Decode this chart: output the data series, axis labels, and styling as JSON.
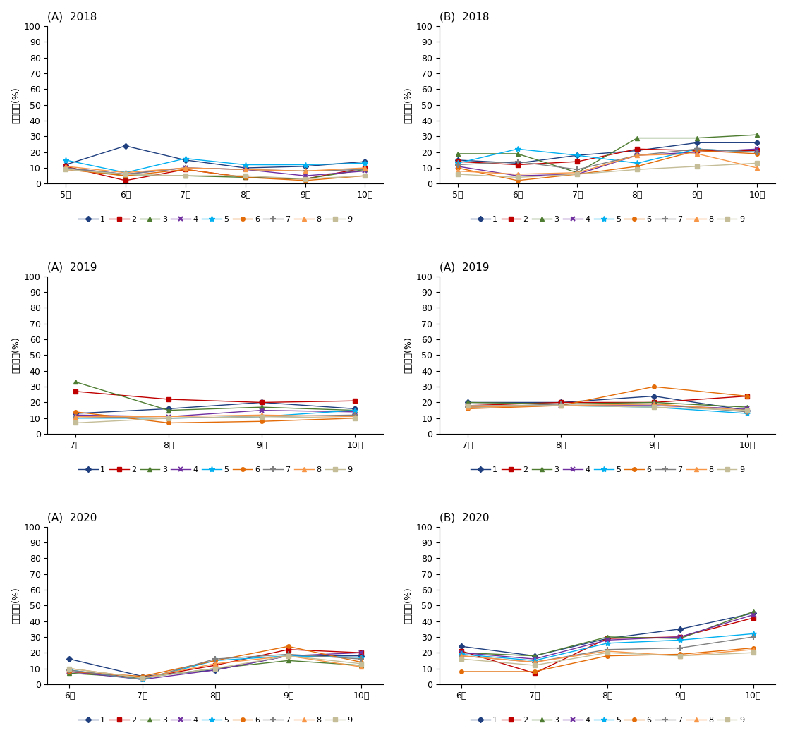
{
  "series_colors": [
    "#1f3f7f",
    "#c00000",
    "#4e7d31",
    "#7030a0",
    "#00b0f0",
    "#e36c09",
    "#808080",
    "#f79646",
    "#c4bd97"
  ],
  "series_markers": [
    "D",
    "s",
    "^",
    "x",
    "*",
    "o",
    "p",
    "p",
    "s"
  ],
  "series_linestyles": [
    "-",
    "-",
    "-",
    "-",
    "-",
    "-",
    "-",
    "-",
    "-"
  ],
  "series_labels": [
    "1",
    "2",
    "3",
    "4",
    "5",
    "6",
    "7",
    "8",
    "9"
  ],
  "ylabel": "광투과율(%)",
  "ylim": [
    0,
    100
  ],
  "yticks": [
    0,
    10,
    20,
    30,
    40,
    50,
    60,
    70,
    80,
    90,
    100
  ],
  "subplots": [
    {
      "title": "(A)  2018",
      "xtick_labels": [
        "5월",
        "6월",
        "7월",
        "8월",
        "9월",
        "10월"
      ],
      "x": [
        0,
        1,
        2,
        3,
        4,
        5
      ],
      "series": [
        [
          12,
          24,
          15,
          10,
          11,
          14
        ],
        [
          11,
          2,
          9,
          4,
          3,
          10
        ],
        [
          10,
          5,
          5,
          4,
          3,
          9
        ],
        [
          10,
          6,
          10,
          9,
          5,
          8
        ],
        [
          15,
          7,
          16,
          12,
          12,
          13
        ],
        [
          9,
          5,
          9,
          4,
          2,
          5
        ],
        [
          10,
          6,
          10,
          9,
          8,
          9
        ],
        [
          11,
          7,
          10,
          9,
          8,
          10
        ],
        [
          9,
          6,
          5,
          5,
          3,
          5
        ]
      ]
    },
    {
      "title": "(B)  2018",
      "xtick_labels": [
        "5월",
        "6월",
        "7월",
        "8월",
        "9월",
        "10월"
      ],
      "x": [
        0,
        1,
        2,
        3,
        4,
        5
      ],
      "series": [
        [
          15,
          13,
          18,
          21,
          26,
          26
        ],
        [
          14,
          12,
          14,
          22,
          21,
          21
        ],
        [
          19,
          19,
          7,
          29,
          29,
          31
        ],
        [
          11,
          5,
          6,
          18,
          20,
          22
        ],
        [
          13,
          22,
          18,
          13,
          22,
          20
        ],
        [
          10,
          2,
          6,
          11,
          21,
          19
        ],
        [
          12,
          14,
          9,
          18,
          22,
          20
        ],
        [
          8,
          6,
          7,
          18,
          19,
          10
        ],
        [
          6,
          4,
          6,
          9,
          11,
          13
        ]
      ]
    },
    {
      "title": "(A)  2019",
      "xtick_labels": [
        "7월",
        "8월",
        "9월",
        "10월"
      ],
      "x": [
        0,
        1,
        2,
        3
      ],
      "series": [
        [
          13,
          16,
          20,
          16
        ],
        [
          27,
          22,
          20,
          21
        ],
        [
          33,
          15,
          17,
          15
        ],
        [
          12,
          11,
          15,
          14
        ],
        [
          10,
          10,
          11,
          15
        ],
        [
          14,
          7,
          8,
          10
        ],
        [
          11,
          10,
          11,
          12
        ],
        [
          11,
          11,
          12,
          11
        ],
        [
          7,
          10,
          11,
          10
        ]
      ]
    },
    {
      "title": "(A)  2019",
      "xtick_labels": [
        "7월",
        "8월",
        "9월",
        "10월"
      ],
      "x": [
        0,
        1,
        2,
        3
      ],
      "series": [
        [
          20,
          20,
          24,
          15
        ],
        [
          18,
          20,
          20,
          24
        ],
        [
          20,
          19,
          20,
          17
        ],
        [
          18,
          18,
          18,
          16
        ],
        [
          17,
          18,
          17,
          13
        ],
        [
          16,
          18,
          30,
          24
        ],
        [
          17,
          19,
          19,
          14
        ],
        [
          17,
          18,
          19,
          15
        ],
        [
          18,
          18,
          17,
          15
        ]
      ]
    },
    {
      "title": "(A)  2020",
      "xtick_labels": [
        "6월",
        "7월",
        "8월",
        "9월",
        "10월"
      ],
      "x": [
        0,
        1,
        2,
        3,
        4
      ],
      "series": [
        [
          16,
          5,
          9,
          18,
          18
        ],
        [
          8,
          4,
          12,
          22,
          20
        ],
        [
          7,
          4,
          10,
          15,
          12
        ],
        [
          8,
          3,
          9,
          18,
          20
        ],
        [
          9,
          3,
          15,
          18,
          17
        ],
        [
          8,
          5,
          15,
          24,
          14
        ],
        [
          9,
          3,
          16,
          19,
          16
        ],
        [
          10,
          4,
          13,
          18,
          11
        ],
        [
          10,
          4,
          10,
          18,
          13
        ]
      ]
    },
    {
      "title": "(B)  2020",
      "xtick_labels": [
        "6월",
        "7월",
        "8월",
        "9월",
        "10월"
      ],
      "x": [
        0,
        1,
        2,
        3,
        4
      ],
      "series": [
        [
          24,
          18,
          29,
          35,
          45
        ],
        [
          21,
          7,
          29,
          30,
          42
        ],
        [
          20,
          18,
          30,
          29,
          46
        ],
        [
          20,
          16,
          28,
          30,
          44
        ],
        [
          19,
          15,
          26,
          28,
          32
        ],
        [
          8,
          8,
          18,
          19,
          23
        ],
        [
          18,
          14,
          22,
          23,
          30
        ],
        [
          18,
          14,
          21,
          18,
          22
        ],
        [
          16,
          12,
          20,
          18,
          20
        ]
      ]
    }
  ]
}
